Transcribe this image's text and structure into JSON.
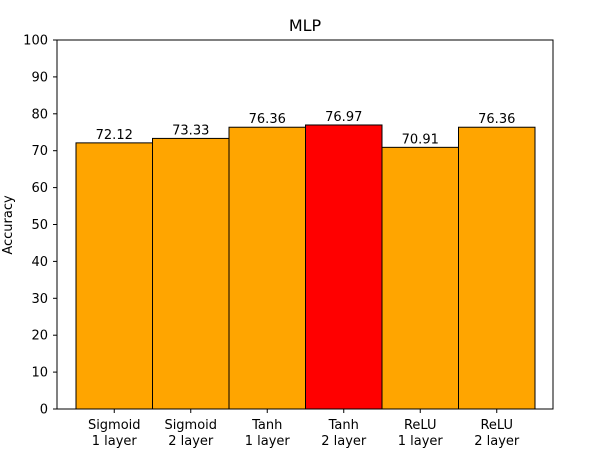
{
  "chart_data": {
    "type": "bar",
    "title": "MLP",
    "xlabel": "",
    "ylabel": "Accuracy",
    "ylim": [
      0,
      100
    ],
    "yticks": [
      0,
      10,
      20,
      30,
      40,
      50,
      60,
      70,
      80,
      90,
      100
    ],
    "grid": false,
    "legend": "none",
    "categories": [
      [
        "Sigmoid",
        "1 layer"
      ],
      [
        "Sigmoid",
        "2 layer"
      ],
      [
        "Tanh",
        "1 layer"
      ],
      [
        "Tanh",
        "2 layer"
      ],
      [
        "ReLU",
        "1 layer"
      ],
      [
        "ReLU",
        "2 layer"
      ]
    ],
    "values": [
      72.12,
      73.33,
      76.36,
      76.97,
      70.91,
      76.36
    ],
    "value_labels": [
      "72.12",
      "73.33",
      "76.36",
      "76.97",
      "70.91",
      "76.36"
    ],
    "colors": [
      "#FFA500",
      "#FFA500",
      "#FFA500",
      "#FF0000",
      "#FFA500",
      "#FFA500"
    ],
    "edge_color": "#000000"
  }
}
